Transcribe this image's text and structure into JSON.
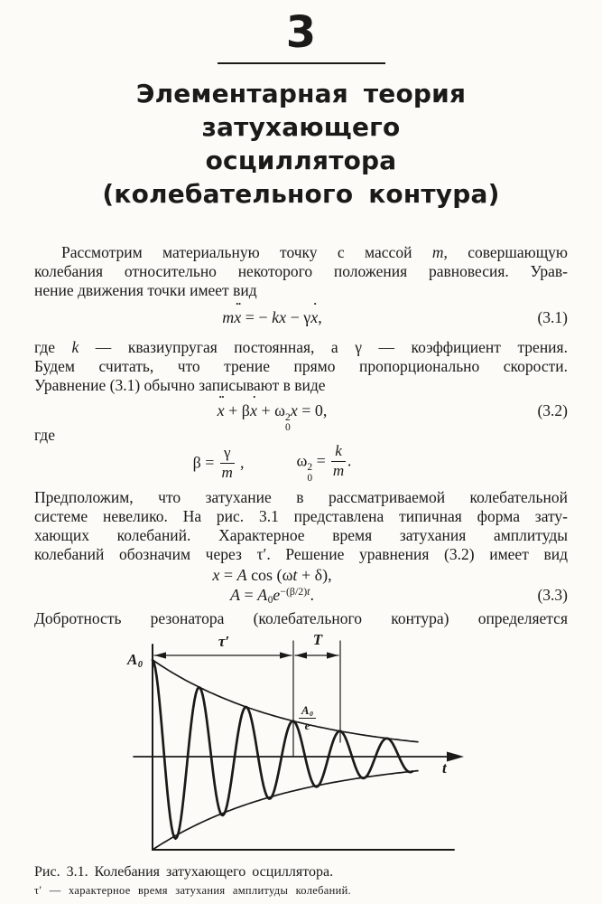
{
  "colors": {
    "paper": "#fcfbf8",
    "ink": "#1b1a18"
  },
  "header": {
    "chapter_number": "3",
    "title_lines": [
      "Элементарная теория затухающего",
      "осциллятора",
      "(колебательного контура)"
    ]
  },
  "body": {
    "p1": [
      [
        {
          "t": "Рассмотрим материальную точку с массой "
        },
        {
          "t": "m",
          "i": 1
        },
        {
          "t": ", совершающую"
        }
      ],
      [
        {
          "t": "колебания относительно некоторого положения равновесия. Урав-"
        }
      ],
      [
        {
          "t": "нение движения точки имеет вид"
        }
      ]
    ],
    "p2": [
      [
        {
          "t": "где "
        },
        {
          "t": "k",
          "i": 1
        },
        {
          "t": " — квазиупругая постоянная, а "
        },
        {
          "t": "γ"
        },
        {
          "t": " — коэффициент трения."
        }
      ],
      [
        {
          "t": "Будем считать, что трение прямо пропорционально скорости."
        }
      ],
      [
        {
          "t": "Уравнение (3.1) обычно записывают в виде"
        }
      ]
    ],
    "p3": [
      [
        {
          "t": "где"
        }
      ]
    ],
    "p4": [
      [
        {
          "t": "Предположим, что затухание в рассматриваемой колебательной"
        }
      ],
      [
        {
          "t": "системе невелико. На рис. 3.1 представлена типичная форма зату-"
        }
      ],
      [
        {
          "t": "хающих колебаний. Характерное время затухания амплитуды"
        }
      ],
      [
        {
          "t": "колебаний обозначим через "
        },
        {
          "t": "τ′"
        },
        {
          "t": ". Решение уравнения (3.2) имеет вид"
        }
      ]
    ],
    "p5": [
      [
        {
          "t": "Добротность резонатора (колебательного контура) определяется"
        }
      ]
    ]
  },
  "equations": {
    "eq31": {
      "tag": "(3.1)",
      "tokens": [
        {
          "t": "m",
          "i": 1
        },
        {
          "t": "x",
          "i": 1,
          "d": 2
        },
        {
          "t": " = − "
        },
        {
          "t": "k",
          "i": 1
        },
        {
          "t": "x",
          "i": 1
        },
        {
          "t": " − "
        },
        {
          "t": "γ"
        },
        {
          "t": "x",
          "i": 1,
          "d": 1
        },
        {
          "t": ","
        }
      ]
    },
    "eq32": {
      "tag": "(3.2)",
      "tokens": [
        {
          "t": "x",
          "i": 1,
          "d": 2
        },
        {
          "t": " + β"
        },
        {
          "t": "x",
          "i": 1,
          "d": 1
        },
        {
          "t": " + ω"
        },
        {
          "ss": {
            "sup": "2",
            "sub": "0"
          }
        },
        {
          "t": "x",
          "i": 1
        },
        {
          "t": " = 0,"
        }
      ]
    },
    "beta_def": {
      "tokens": [
        {
          "t": "β = "
        },
        {
          "f": {
            "num": [
              {
                "t": "γ"
              }
            ],
            "den": [
              {
                "t": "m",
                "i": 1
              }
            ]
          }
        },
        {
          "t": " ,"
        }
      ]
    },
    "omega_def": {
      "tokens": [
        {
          "t": "ω"
        },
        {
          "ss": {
            "sup": "2",
            "sub": "0"
          }
        },
        {
          "t": " = "
        },
        {
          "f": {
            "num": [
              {
                "t": "k",
                "i": 1
              }
            ],
            "den": [
              {
                "t": "m",
                "i": 1
              }
            ]
          }
        },
        {
          "t": "."
        }
      ]
    },
    "eq33a": {
      "tokens": [
        {
          "t": "x",
          "i": 1
        },
        {
          "t": " = "
        },
        {
          "t": "A",
          "i": 1
        },
        {
          "t": " cos ("
        },
        {
          "t": "ω"
        },
        {
          "t": "t",
          "i": 1
        },
        {
          "t": " + δ),"
        }
      ]
    },
    "eq33b": {
      "tag": "(3.3)",
      "tokens": [
        {
          "t": "A",
          "i": 1
        },
        {
          "t": " = "
        },
        {
          "t": "A",
          "i": 1
        },
        {
          "t": "0",
          "b": 1
        },
        {
          "t": "e",
          "i": 1
        },
        {
          "t": "−(β/2)",
          "s": 1
        },
        {
          "t": "t",
          "i": 1,
          "s": 1
        },
        {
          "t": "."
        }
      ]
    }
  },
  "figure": {
    "labels": {
      "A0": [
        {
          "t": "A",
          "i": 1
        },
        {
          "t": "0",
          "b": 1
        }
      ],
      "A0_over_e": [
        {
          "f": {
            "num": [
              {
                "t": "A",
                "i": 1
              },
              {
                "t": "0",
                "b": 1
              }
            ],
            "den": [
              {
                "t": "e",
                "i": 1
              }
            ]
          }
        }
      ],
      "tau_prime": [
        {
          "t": "τ′"
        }
      ],
      "T": [
        {
          "t": "T",
          "i": 1
        }
      ],
      "t": [
        {
          "t": "t",
          "i": 1
        }
      ]
    },
    "caption": [
      {
        "t": "Рис. 3.1. Колебания затухающего осциллятора."
      }
    ],
    "caption_note": [
      {
        "t": "τ′ — характерное время затухания амплитуды колебаний."
      }
    ]
  },
  "chart_data": {
    "type": "line",
    "title": "Колебания затухающего осциллятора",
    "xlabel": "t",
    "model": "x(t) = A0 · exp(−t/τ′) · cos(2πt/T)",
    "A0": 1,
    "period_T": 1,
    "tau_prime_in_periods": 3,
    "t_span_in_periods": 5.55,
    "amplitude_at_tau_prime": 0.368,
    "envelope": "± A0 · exp(−t/τ′)",
    "peaks_at_periods": [
      0,
      1,
      2,
      3,
      4,
      5
    ],
    "marker_tau_prime_interval": [
      0,
      3
    ],
    "marker_T_interval": [
      3,
      4
    ],
    "annotations": [
      "A0",
      "A0/e",
      "τ′",
      "T",
      "t"
    ],
    "legend": "none",
    "grid": false
  }
}
